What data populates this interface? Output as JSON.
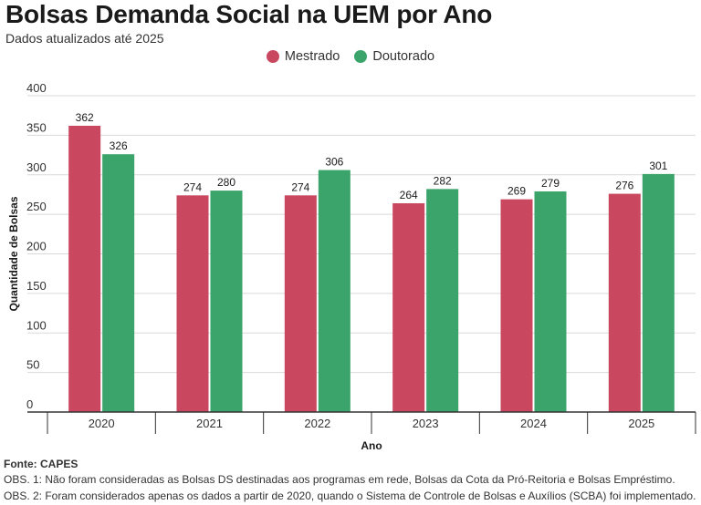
{
  "title": "Bolsas Demanda Social na UEM por Ano",
  "subtitle": "Dados atualizados até 2025",
  "source": "Fonte: CAPES",
  "notes": [
    "OBS. 1: Não foram consideradas as Bolsas DS destinadas aos programas em rede, Bolsas da Cota da Pró-Reitoria e Bolsas Empréstimo.",
    "OBS. 2: Foram considerados apenas os dados a partir de 2020, quando o Sistema de Controle de Bolsas e Auxílios (SCBA) foi implementado."
  ],
  "chart_data": {
    "type": "bar",
    "title": "Bolsas Demanda Social na UEM por Ano",
    "subtitle": "Dados atualizados até 2025",
    "xlabel": "Ano",
    "ylabel": "Quantidade de Bolsas",
    "categories": [
      "2020",
      "2021",
      "2022",
      "2023",
      "2024",
      "2025"
    ],
    "series": [
      {
        "name": "Mestrado",
        "color": "#c9485f",
        "values": [
          362,
          274,
          274,
          264,
          269,
          276
        ]
      },
      {
        "name": "Doutorado",
        "color": "#3aa46a",
        "values": [
          326,
          280,
          306,
          282,
          279,
          301
        ]
      }
    ],
    "ylim": [
      0,
      400
    ],
    "yticks": [
      0,
      50,
      100,
      150,
      200,
      250,
      300,
      350,
      400
    ],
    "grid": true,
    "legend": "top-center",
    "data_labels": true
  }
}
